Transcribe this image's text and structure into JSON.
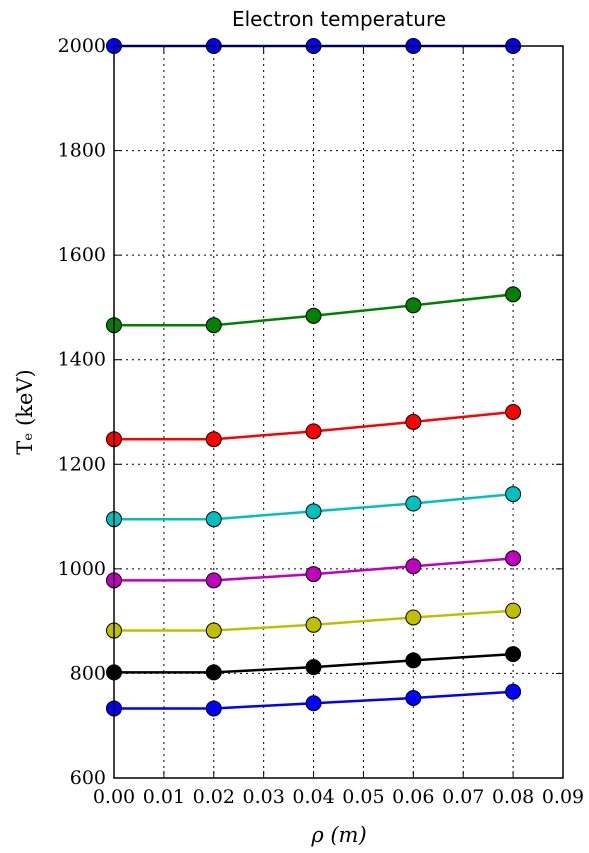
{
  "chart_data": {
    "type": "line",
    "title": "Electron temperature",
    "xlabel": "ρ (m)",
    "ylabel": "Tₑ (keV)",
    "xlim": [
      0.0,
      0.09
    ],
    "ylim": [
      600,
      2000
    ],
    "x_ticks": [
      0.0,
      0.01,
      0.02,
      0.03,
      0.04,
      0.05,
      0.06,
      0.07,
      0.08,
      0.09
    ],
    "x_tick_labels": [
      "0.00",
      "0.01",
      "0.02",
      "0.03",
      "0.04",
      "0.05",
      "0.06",
      "0.07",
      "0.08",
      "0.09"
    ],
    "y_ticks": [
      600,
      800,
      1000,
      1200,
      1400,
      1600,
      1800,
      2000
    ],
    "y_tick_labels": [
      "600",
      "800",
      "1000",
      "1200",
      "1400",
      "1600",
      "1800",
      "2000"
    ],
    "grid": true,
    "x": [
      0.0,
      0.02,
      0.04,
      0.06,
      0.08
    ],
    "series": [
      {
        "color": "#0000ff",
        "values": [
          2000,
          2000,
          2000,
          2000,
          2000
        ]
      },
      {
        "color": "#008000",
        "values": [
          1466,
          1466,
          1484,
          1504,
          1525
        ]
      },
      {
        "color": "#ff0000",
        "values": [
          1248,
          1248,
          1263,
          1281,
          1300
        ]
      },
      {
        "color": "#00bfbf",
        "values": [
          1095,
          1095,
          1110,
          1125,
          1143
        ]
      },
      {
        "color": "#bf00bf",
        "values": [
          978,
          978,
          990,
          1005,
          1020
        ]
      },
      {
        "color": "#bfbf00",
        "values": [
          882,
          882,
          893,
          907,
          920
        ]
      },
      {
        "color": "#000000",
        "values": [
          802,
          802,
          812,
          825,
          837
        ]
      },
      {
        "color": "#0000ff",
        "values": [
          733,
          733,
          743,
          753,
          765
        ]
      }
    ]
  }
}
